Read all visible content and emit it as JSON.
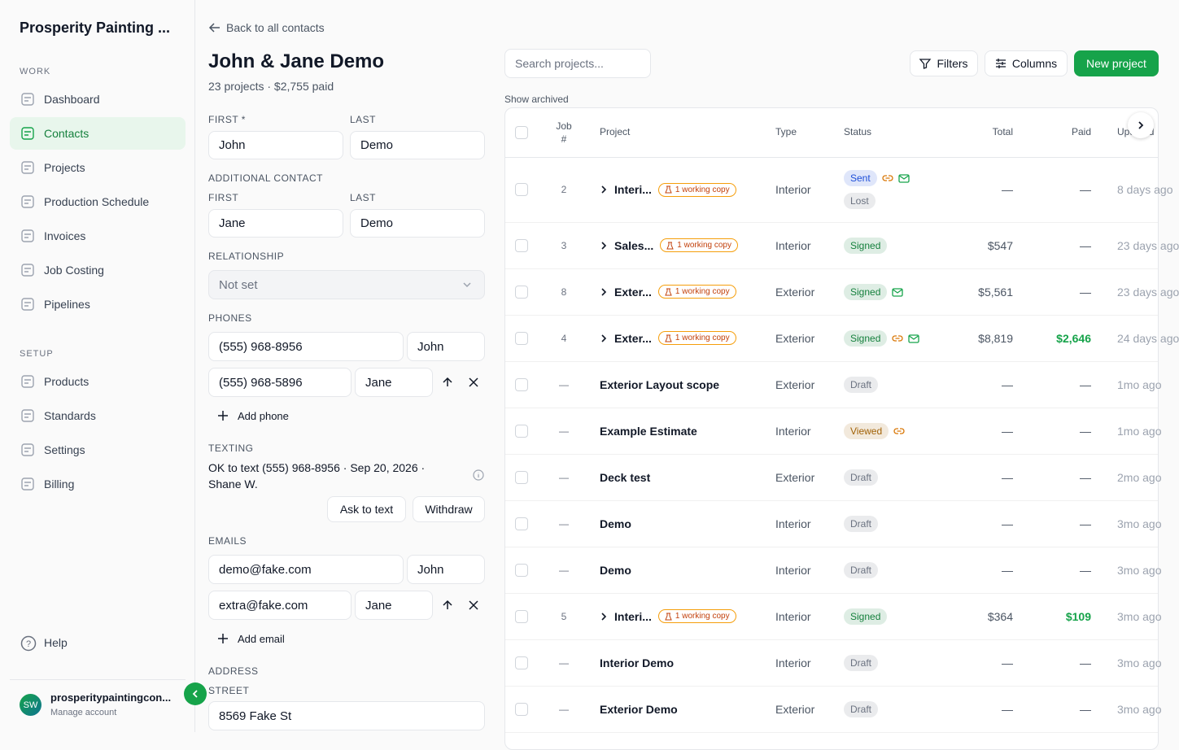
{
  "sidebar": {
    "brand": "Prosperity Painting ...",
    "sections": [
      {
        "title": "WORK",
        "items": [
          "Dashboard",
          "Contacts",
          "Projects",
          "Production Schedule",
          "Invoices",
          "Job Costing",
          "Pipelines"
        ]
      },
      {
        "title": "SETUP",
        "items": [
          "Products",
          "Standards",
          "Settings",
          "Billing"
        ]
      }
    ],
    "active": "Contacts",
    "help": "Help",
    "account": {
      "initials": "SW",
      "name": "prosperitypaintingcon...",
      "sub": "Manage account"
    }
  },
  "contact": {
    "back": "Back to all contacts",
    "name": "John & Jane Demo",
    "summary": "23 projects · $2,755 paid",
    "first_label": "FIRST *",
    "last_label": "LAST",
    "first": "John",
    "last": "Demo",
    "additional_label": "ADDITIONAL CONTACT",
    "add_first_label": "FIRST",
    "add_last_label": "LAST",
    "add_first": "Jane",
    "add_last": "Demo",
    "relationship_label": "RELATIONSHIP",
    "relationship": "Not set",
    "phones_label": "PHONES",
    "phones": [
      {
        "number": "(555) 968-8956",
        "name": "John"
      },
      {
        "number": "(555) 968-5896",
        "name": "Jane"
      }
    ],
    "add_phone": "Add phone",
    "texting_label": "TEXTING",
    "texting": "OK to text (555) 968-8956 · Sep 20, 2026 · Shane W.",
    "ask": "Ask to text",
    "withdraw": "Withdraw",
    "emails_label": "EMAILS",
    "emails": [
      {
        "address": "demo@fake.com",
        "name": "John"
      },
      {
        "address": "extra@fake.com",
        "name": "Jane"
      }
    ],
    "add_email": "Add email",
    "address_label": "ADDRESS",
    "street_label": "STREET",
    "street": "8569 Fake St"
  },
  "projects": {
    "search": "Search projects...",
    "filters": "Filters",
    "columns": "Columns",
    "new": "New project",
    "archived": "Show archived",
    "headers": [
      "Job #",
      "Project",
      "Type",
      "Status",
      "Total",
      "Paid",
      "Updated"
    ],
    "rows": [
      {
        "job": "2",
        "project": "Interi...",
        "badge": "1 working copy",
        "type": "Interior",
        "statuses": [
          {
            "label": "Sent",
            "color": "#1d4ed8"
          },
          {
            "label": "Lost",
            "color": "#6b7280"
          }
        ],
        "link": true,
        "mail": true,
        "total": "—",
        "paid": "—",
        "updated": "8 days ago"
      },
      {
        "job": "3",
        "project": "Sales...",
        "badge": "1 working copy",
        "type": "Interior",
        "statuses": [
          {
            "label": "Signed",
            "color": "#15803d"
          }
        ],
        "total": "$547",
        "paid": "—",
        "updated": "23 days ago"
      },
      {
        "job": "8",
        "project": "Exter...",
        "badge": "1 working copy",
        "type": "Exterior",
        "statuses": [
          {
            "label": "Signed",
            "color": "#15803d"
          }
        ],
        "mail": true,
        "total": "$5,561",
        "paid": "—",
        "updated": "23 days ago"
      },
      {
        "job": "4",
        "project": "Exter...",
        "badge": "1 working copy",
        "type": "Exterior",
        "statuses": [
          {
            "label": "Signed",
            "color": "#15803d"
          }
        ],
        "link": true,
        "mail": true,
        "total": "$8,819",
        "paid": "$2,646",
        "paid_color": "#16a34a",
        "updated": "24 days ago"
      },
      {
        "job": "—",
        "project": "Exterior Layout scope",
        "type": "Exterior",
        "statuses": [
          {
            "label": "Draft",
            "color": "#6b7280"
          }
        ],
        "total": "—",
        "paid": "—",
        "updated": "1mo ago"
      },
      {
        "job": "—",
        "project": "Example Estimate",
        "type": "Interior",
        "statuses": [
          {
            "label": "Viewed",
            "color": "#a16207"
          }
        ],
        "link": true,
        "total": "—",
        "paid": "—",
        "updated": "1mo ago"
      },
      {
        "job": "—",
        "project": "Deck test",
        "type": "Exterior",
        "statuses": [
          {
            "label": "Draft",
            "color": "#6b7280"
          }
        ],
        "total": "—",
        "paid": "—",
        "updated": "2mo ago"
      },
      {
        "job": "—",
        "project": "Demo",
        "type": "Interior",
        "statuses": [
          {
            "label": "Draft",
            "color": "#6b7280"
          }
        ],
        "total": "—",
        "paid": "—",
        "updated": "3mo ago"
      },
      {
        "job": "—",
        "project": "Demo",
        "type": "Interior",
        "statuses": [
          {
            "label": "Draft",
            "color": "#6b7280"
          }
        ],
        "total": "—",
        "paid": "—",
        "updated": "3mo ago"
      },
      {
        "job": "5",
        "project": "Interi...",
        "badge": "1 working copy",
        "type": "Interior",
        "statuses": [
          {
            "label": "Signed",
            "color": "#15803d"
          }
        ],
        "total": "$364",
        "paid": "$109",
        "paid_color": "#16a34a",
        "updated": "3mo ago"
      },
      {
        "job": "—",
        "project": "Interior Demo",
        "type": "Interior",
        "statuses": [
          {
            "label": "Draft",
            "color": "#6b7280"
          }
        ],
        "total": "—",
        "paid": "—",
        "updated": "3mo ago"
      },
      {
        "job": "—",
        "project": "Exterior Demo",
        "type": "Exterior",
        "statuses": [
          {
            "label": "Draft",
            "color": "#6b7280"
          }
        ],
        "total": "—",
        "paid": "—",
        "updated": "3mo ago"
      }
    ]
  }
}
